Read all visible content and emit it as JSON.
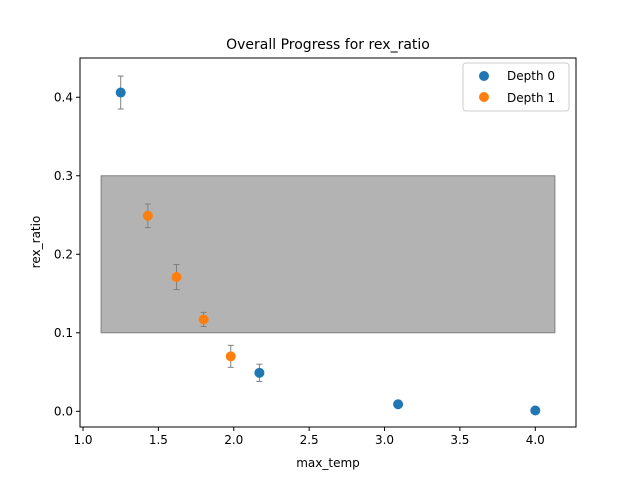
{
  "chart_data": {
    "type": "scatter",
    "title": "Overall Progress for rex_ratio",
    "xlabel": "max_temp",
    "ylabel": "rex_ratio",
    "xlim": [
      0.98,
      4.27
    ],
    "ylim": [
      -0.02,
      0.45
    ],
    "x_ticks": [
      1.0,
      1.5,
      2.0,
      2.5,
      3.0,
      3.5,
      4.0
    ],
    "x_tick_labels": [
      "1.0",
      "1.5",
      "2.0",
      "2.5",
      "3.0",
      "3.5",
      "4.0"
    ],
    "y_ticks": [
      0.0,
      0.1,
      0.2,
      0.3,
      0.4
    ],
    "y_tick_labels": [
      "0.0",
      "0.1",
      "0.2",
      "0.3",
      "0.4"
    ],
    "grid": false,
    "legend_position": "top-right",
    "band": {
      "x0": 1.12,
      "x1": 4.13,
      "y0": 0.1,
      "y1": 0.3,
      "color": "#808080"
    },
    "series": [
      {
        "name": "Depth 0",
        "color": "#1f77b4",
        "points": [
          {
            "x": 1.25,
            "y": 0.406,
            "err": 0.021
          },
          {
            "x": 2.17,
            "y": 0.049,
            "err": 0.011
          },
          {
            "x": 3.09,
            "y": 0.009,
            "err": 0
          },
          {
            "x": 4.0,
            "y": 0.001,
            "err": 0
          }
        ]
      },
      {
        "name": "Depth 1",
        "color": "#ff7f0e",
        "points": [
          {
            "x": 1.43,
            "y": 0.249,
            "err": 0.015
          },
          {
            "x": 1.62,
            "y": 0.171,
            "err": 0.016
          },
          {
            "x": 1.8,
            "y": 0.117,
            "err": 0.009
          },
          {
            "x": 1.98,
            "y": 0.07,
            "err": 0.014
          }
        ]
      }
    ]
  }
}
